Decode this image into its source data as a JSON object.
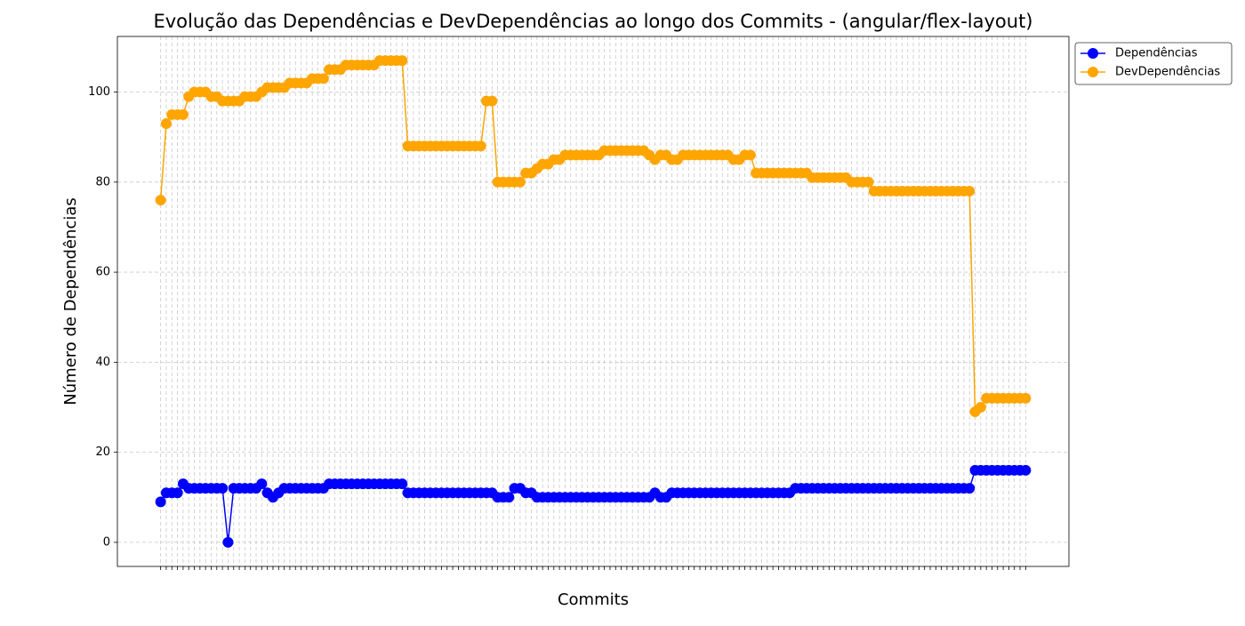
{
  "chart_data": {
    "type": "line",
    "title": "Evolução das Dependências e DevDependências ao longo dos Commits - (angular/flex-layout)",
    "xlabel": "Commits",
    "ylabel": "Número de Dependências",
    "categories": [
      null,
      null,
      null,
      null,
      null,
      null,
      null,
      null,
      null,
      null,
      null,
      null,
      null,
      null,
      null,
      null,
      null,
      null,
      null,
      null,
      null,
      null,
      null,
      null,
      null,
      null,
      null,
      null,
      null,
      null,
      null,
      null,
      null,
      null,
      null,
      null,
      null,
      null,
      null,
      null,
      null,
      null,
      null,
      null,
      null,
      null,
      null,
      null,
      null,
      null,
      null,
      null,
      null,
      null,
      null,
      null,
      null,
      null,
      null,
      null,
      null,
      null,
      null,
      null,
      null,
      null,
      null,
      null,
      null,
      null,
      null,
      null,
      null,
      null,
      null,
      null,
      null,
      null,
      null,
      null,
      null,
      null,
      null,
      null,
      null,
      null,
      null,
      null,
      null,
      null,
      null,
      null,
      null,
      null,
      null,
      null,
      null,
      null,
      null,
      null,
      null,
      null,
      null,
      null,
      null,
      null,
      null,
      null,
      null,
      null,
      null,
      null,
      null,
      null,
      null,
      null,
      null,
      null,
      null,
      null,
      null,
      null,
      null,
      null,
      null,
      null,
      null,
      null,
      null,
      null,
      null,
      null,
      null,
      null,
      null,
      null,
      null,
      null,
      null,
      null,
      null,
      null,
      null,
      null,
      null,
      null,
      null,
      null,
      null,
      null,
      null,
      null,
      null,
      null,
      null
    ],
    "series": [
      {
        "name": "Dependências",
        "color": "#0000ff",
        "values": [
          9,
          11,
          11,
          11,
          13,
          12,
          12,
          12,
          12,
          12,
          12,
          12,
          0,
          12,
          12,
          12,
          12,
          12,
          13,
          11,
          10,
          11,
          12,
          12,
          12,
          12,
          12,
          12,
          12,
          12,
          13,
          13,
          13,
          13,
          13,
          13,
          13,
          13,
          13,
          13,
          13,
          13,
          13,
          13,
          11,
          11,
          11,
          11,
          11,
          11,
          11,
          11,
          11,
          11,
          11,
          11,
          11,
          11,
          11,
          11,
          10,
          10,
          10,
          12,
          12,
          11,
          11,
          10,
          10,
          10,
          10,
          10,
          10,
          10,
          10,
          10,
          10,
          10,
          10,
          10,
          10,
          10,
          10,
          10,
          10,
          10,
          10,
          10,
          11,
          10,
          10,
          11,
          11,
          11,
          11,
          11,
          11,
          11,
          11,
          11,
          11,
          11,
          11,
          11,
          11,
          11,
          11,
          11,
          11,
          11,
          11,
          11,
          11,
          12,
          12,
          12,
          12,
          12,
          12,
          12,
          12,
          12,
          12,
          12,
          12,
          12,
          12,
          12,
          12,
          12,
          12,
          12,
          12,
          12,
          12,
          12,
          12,
          12,
          12,
          12,
          12,
          12,
          12,
          12,
          12,
          16,
          16,
          16,
          16,
          16,
          16,
          16,
          16,
          16,
          16
        ]
      },
      {
        "name": "DevDependências",
        "color": "#ffa500",
        "values": [
          76,
          93,
          95,
          95,
          95,
          99,
          100,
          100,
          100,
          99,
          99,
          98,
          98,
          98,
          98,
          99,
          99,
          99,
          100,
          101,
          101,
          101,
          101,
          102,
          102,
          102,
          102,
          103,
          103,
          103,
          105,
          105,
          105,
          106,
          106,
          106,
          106,
          106,
          106,
          107,
          107,
          107,
          107,
          107,
          88,
          88,
          88,
          88,
          88,
          88,
          88,
          88,
          88,
          88,
          88,
          88,
          88,
          88,
          98,
          98,
          80,
          80,
          80,
          80,
          80,
          82,
          82,
          83,
          84,
          84,
          85,
          85,
          86,
          86,
          86,
          86,
          86,
          86,
          86,
          87,
          87,
          87,
          87,
          87,
          87,
          87,
          87,
          86,
          85,
          86,
          86,
          85,
          85,
          86,
          86,
          86,
          86,
          86,
          86,
          86,
          86,
          86,
          85,
          85,
          86,
          86,
          82,
          82,
          82,
          82,
          82,
          82,
          82,
          82,
          82,
          82,
          81,
          81,
          81,
          81,
          81,
          81,
          81,
          80,
          80,
          80,
          80,
          78,
          78,
          78,
          78,
          78,
          78,
          78,
          78,
          78,
          78,
          78,
          78,
          78,
          78,
          78,
          78,
          78,
          78,
          29,
          30,
          32,
          32,
          32,
          32,
          32,
          32,
          32,
          32
        ]
      }
    ],
    "ylim": [
      -5.35,
      112.35
    ],
    "yticks": [
      0,
      20,
      40,
      60,
      80,
      100
    ],
    "grid": true,
    "legend": "outside-upper-right"
  }
}
